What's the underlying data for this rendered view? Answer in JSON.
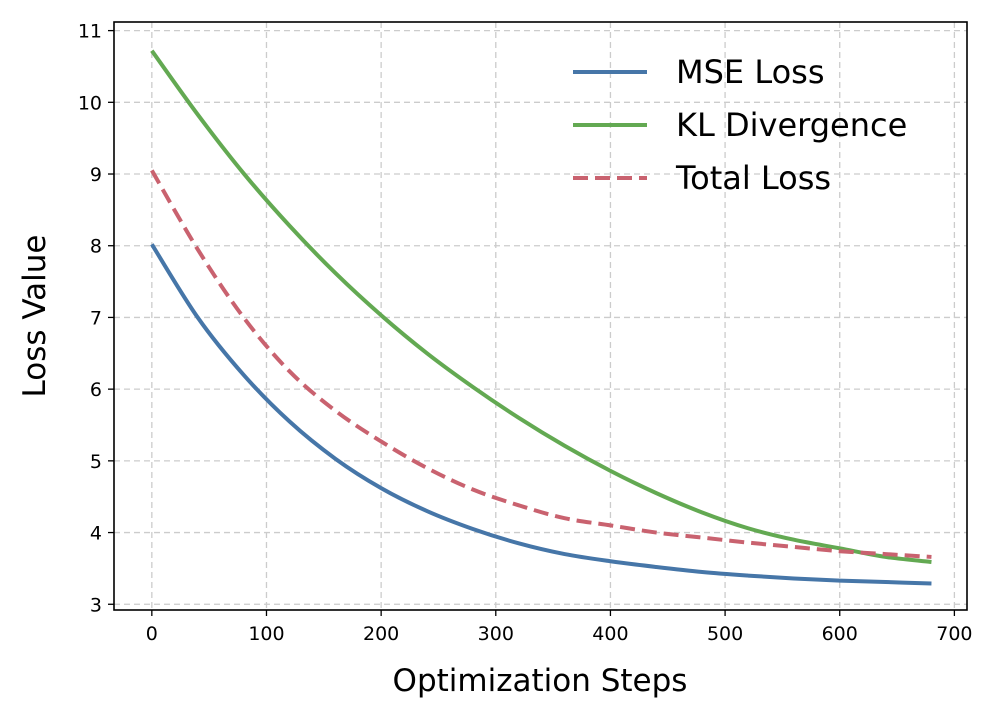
{
  "chart_data": {
    "type": "line",
    "title": "",
    "xlabel": "Optimization Steps",
    "ylabel": "Loss Value",
    "xlim": [
      -33,
      711
    ],
    "ylim": [
      2.92,
      11.12
    ],
    "xticks": [
      0,
      100,
      200,
      300,
      400,
      500,
      600,
      700
    ],
    "xtick_labels": [
      "0",
      "100",
      "200",
      "300",
      "400",
      "500",
      "600",
      "700"
    ],
    "yticks": [
      3,
      4,
      5,
      6,
      7,
      8,
      9,
      10,
      11
    ],
    "ytick_labels": [
      "3",
      "4",
      "5",
      "6",
      "7",
      "8",
      "9",
      "10",
      "11"
    ],
    "grid": true,
    "legend_position": "top-right",
    "x": [
      0,
      40,
      80,
      120,
      160,
      200,
      240,
      280,
      320,
      360,
      400,
      440,
      480,
      520,
      560,
      600,
      640,
      680
    ],
    "series": [
      {
        "name": "MSE Loss",
        "color": "#4676a8",
        "dashed": false,
        "values": [
          8.02,
          7.0,
          6.2,
          5.55,
          5.03,
          4.62,
          4.3,
          4.05,
          3.85,
          3.7,
          3.6,
          3.52,
          3.45,
          3.4,
          3.36,
          3.33,
          3.31,
          3.29
        ]
      },
      {
        "name": "KL Divergence",
        "color": "#63a952",
        "dashed": false,
        "values": [
          10.72,
          9.83,
          9.01,
          8.28,
          7.62,
          7.03,
          6.5,
          6.03,
          5.6,
          5.21,
          4.86,
          4.55,
          4.28,
          4.06,
          3.9,
          3.78,
          3.66,
          3.59
        ]
      },
      {
        "name": "Total Loss",
        "color": "#c9626f",
        "dashed": true,
        "values": [
          9.05,
          7.95,
          7.0,
          6.25,
          5.7,
          5.27,
          4.9,
          4.6,
          4.38,
          4.2,
          4.1,
          4.0,
          3.93,
          3.86,
          3.8,
          3.74,
          3.7,
          3.66
        ]
      }
    ]
  }
}
